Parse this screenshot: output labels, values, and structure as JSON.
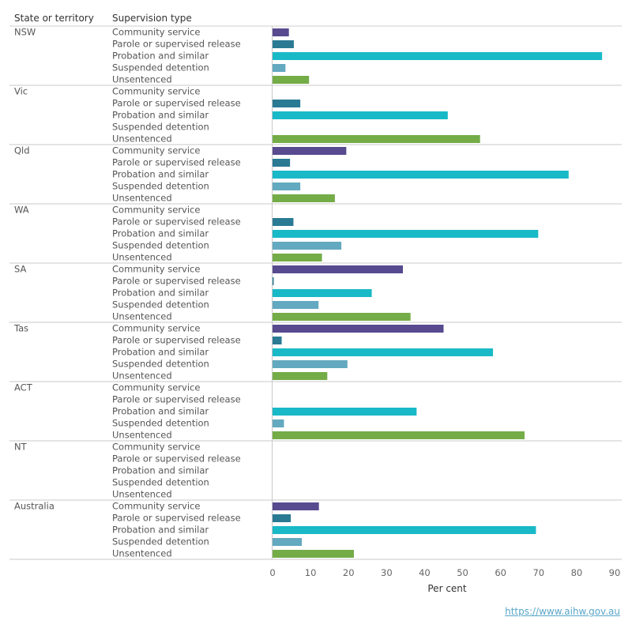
{
  "headers": {
    "state": "State or territory",
    "type": "Supervision type"
  },
  "source_link": "https://www.aihw.gov.au",
  "colors": {
    "Community service": "#574a8f",
    "Parole or supervised release": "#2a7a94",
    "Probation and similar": "#1ab9c7",
    "Suspended detention": "#63a9c0",
    "Unsentenced": "#74ac48"
  },
  "chart_data": {
    "type": "bar",
    "orientation": "horizontal",
    "xlabel": "Per cent",
    "xlim": [
      0,
      90
    ],
    "xticks": [
      0,
      10,
      20,
      30,
      40,
      50,
      60,
      70,
      80,
      90
    ],
    "grid": false,
    "supervision_types": [
      "Community service",
      "Parole or supervised release",
      "Probation and similar",
      "Suspended detention",
      "Unsentenced"
    ],
    "groups": [
      {
        "name": "NSW",
        "values": [
          4.3,
          5.6,
          86.7,
          3.4,
          9.6
        ]
      },
      {
        "name": "Vic",
        "values": [
          0,
          7.3,
          46.1,
          0,
          54.6
        ]
      },
      {
        "name": "Qld",
        "values": [
          19.4,
          4.6,
          77.9,
          7.3,
          16.4
        ]
      },
      {
        "name": "WA",
        "values": [
          0,
          5.5,
          69.9,
          18.1,
          13.0
        ]
      },
      {
        "name": "SA",
        "values": [
          34.3,
          0.3,
          26.1,
          12.1,
          36.3
        ]
      },
      {
        "name": "Tas",
        "values": [
          45.0,
          2.4,
          58.0,
          19.7,
          14.4
        ]
      },
      {
        "name": "ACT",
        "values": [
          0,
          0,
          37.9,
          3.0,
          66.3
        ]
      },
      {
        "name": "NT",
        "values": [
          0,
          0,
          0,
          0,
          0
        ]
      },
      {
        "name": "Australia",
        "values": [
          12.2,
          4.8,
          69.3,
          7.7,
          21.4
        ]
      }
    ]
  }
}
